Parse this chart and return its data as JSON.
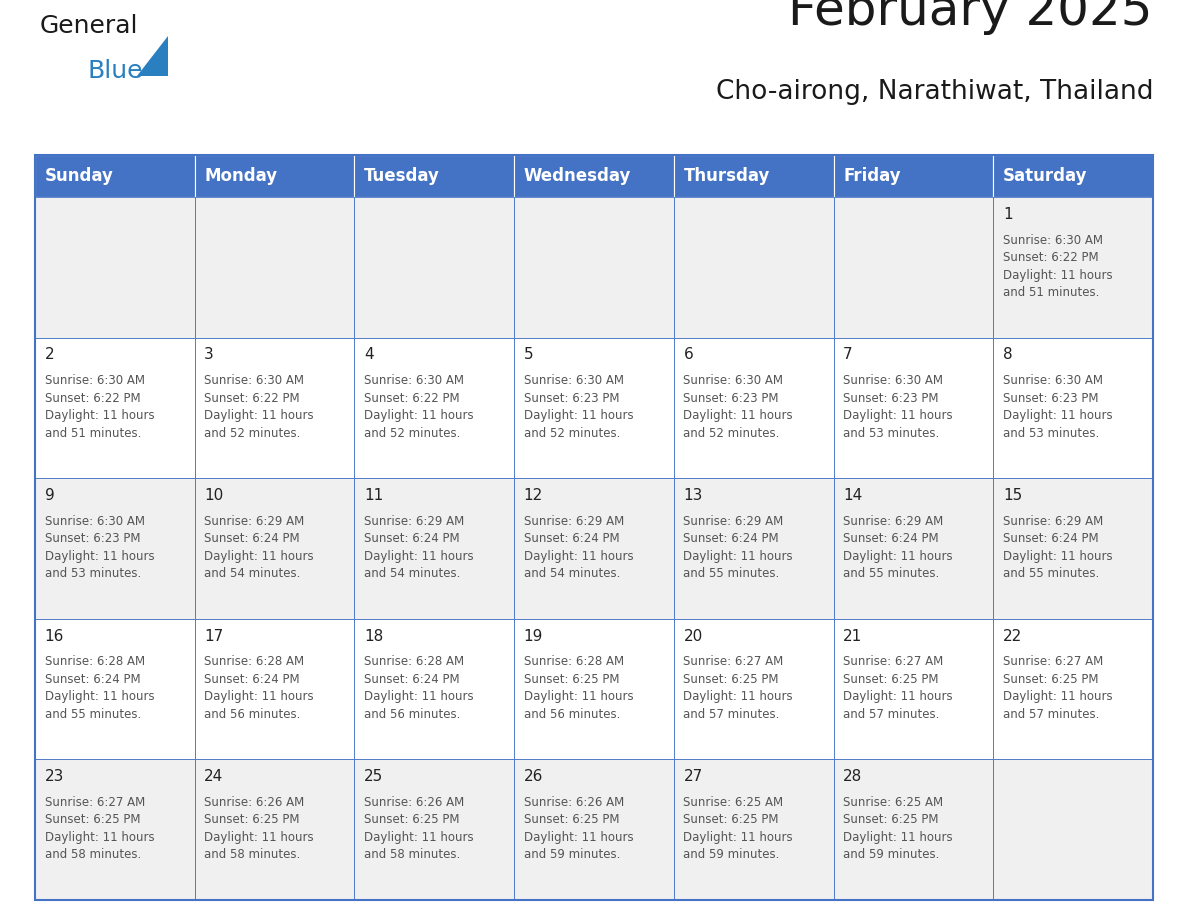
{
  "title": "February 2025",
  "subtitle": "Cho-airong, Narathiwat, Thailand",
  "header_color": "#4472C4",
  "header_text_color": "#FFFFFF",
  "days_of_week": [
    "Sunday",
    "Monday",
    "Tuesday",
    "Wednesday",
    "Thursday",
    "Friday",
    "Saturday"
  ],
  "background_color": "#FFFFFF",
  "cell_bg_even": "#F0F0F0",
  "cell_bg_odd": "#FFFFFF",
  "border_color": "#4472C4",
  "day_number_color": "#222222",
  "info_text_color": "#555555",
  "calendar_data": [
    [
      null,
      null,
      null,
      null,
      null,
      null,
      {
        "day": 1,
        "sunrise": "6:30 AM",
        "sunset": "6:22 PM",
        "daylight": "11 hours\nand 51 minutes."
      }
    ],
    [
      {
        "day": 2,
        "sunrise": "6:30 AM",
        "sunset": "6:22 PM",
        "daylight": "11 hours\nand 51 minutes."
      },
      {
        "day": 3,
        "sunrise": "6:30 AM",
        "sunset": "6:22 PM",
        "daylight": "11 hours\nand 52 minutes."
      },
      {
        "day": 4,
        "sunrise": "6:30 AM",
        "sunset": "6:22 PM",
        "daylight": "11 hours\nand 52 minutes."
      },
      {
        "day": 5,
        "sunrise": "6:30 AM",
        "sunset": "6:23 PM",
        "daylight": "11 hours\nand 52 minutes."
      },
      {
        "day": 6,
        "sunrise": "6:30 AM",
        "sunset": "6:23 PM",
        "daylight": "11 hours\nand 52 minutes."
      },
      {
        "day": 7,
        "sunrise": "6:30 AM",
        "sunset": "6:23 PM",
        "daylight": "11 hours\nand 53 minutes."
      },
      {
        "day": 8,
        "sunrise": "6:30 AM",
        "sunset": "6:23 PM",
        "daylight": "11 hours\nand 53 minutes."
      }
    ],
    [
      {
        "day": 9,
        "sunrise": "6:30 AM",
        "sunset": "6:23 PM",
        "daylight": "11 hours\nand 53 minutes."
      },
      {
        "day": 10,
        "sunrise": "6:29 AM",
        "sunset": "6:24 PM",
        "daylight": "11 hours\nand 54 minutes."
      },
      {
        "day": 11,
        "sunrise": "6:29 AM",
        "sunset": "6:24 PM",
        "daylight": "11 hours\nand 54 minutes."
      },
      {
        "day": 12,
        "sunrise": "6:29 AM",
        "sunset": "6:24 PM",
        "daylight": "11 hours\nand 54 minutes."
      },
      {
        "day": 13,
        "sunrise": "6:29 AM",
        "sunset": "6:24 PM",
        "daylight": "11 hours\nand 55 minutes."
      },
      {
        "day": 14,
        "sunrise": "6:29 AM",
        "sunset": "6:24 PM",
        "daylight": "11 hours\nand 55 minutes."
      },
      {
        "day": 15,
        "sunrise": "6:29 AM",
        "sunset": "6:24 PM",
        "daylight": "11 hours\nand 55 minutes."
      }
    ],
    [
      {
        "day": 16,
        "sunrise": "6:28 AM",
        "sunset": "6:24 PM",
        "daylight": "11 hours\nand 55 minutes."
      },
      {
        "day": 17,
        "sunrise": "6:28 AM",
        "sunset": "6:24 PM",
        "daylight": "11 hours\nand 56 minutes."
      },
      {
        "day": 18,
        "sunrise": "6:28 AM",
        "sunset": "6:24 PM",
        "daylight": "11 hours\nand 56 minutes."
      },
      {
        "day": 19,
        "sunrise": "6:28 AM",
        "sunset": "6:25 PM",
        "daylight": "11 hours\nand 56 minutes."
      },
      {
        "day": 20,
        "sunrise": "6:27 AM",
        "sunset": "6:25 PM",
        "daylight": "11 hours\nand 57 minutes."
      },
      {
        "day": 21,
        "sunrise": "6:27 AM",
        "sunset": "6:25 PM",
        "daylight": "11 hours\nand 57 minutes."
      },
      {
        "day": 22,
        "sunrise": "6:27 AM",
        "sunset": "6:25 PM",
        "daylight": "11 hours\nand 57 minutes."
      }
    ],
    [
      {
        "day": 23,
        "sunrise": "6:27 AM",
        "sunset": "6:25 PM",
        "daylight": "11 hours\nand 58 minutes."
      },
      {
        "day": 24,
        "sunrise": "6:26 AM",
        "sunset": "6:25 PM",
        "daylight": "11 hours\nand 58 minutes."
      },
      {
        "day": 25,
        "sunrise": "6:26 AM",
        "sunset": "6:25 PM",
        "daylight": "11 hours\nand 58 minutes."
      },
      {
        "day": 26,
        "sunrise": "6:26 AM",
        "sunset": "6:25 PM",
        "daylight": "11 hours\nand 59 minutes."
      },
      {
        "day": 27,
        "sunrise": "6:25 AM",
        "sunset": "6:25 PM",
        "daylight": "11 hours\nand 59 minutes."
      },
      {
        "day": 28,
        "sunrise": "6:25 AM",
        "sunset": "6:25 PM",
        "daylight": "11 hours\nand 59 minutes."
      },
      null
    ]
  ],
  "title_fontsize": 36,
  "subtitle_fontsize": 19,
  "header_fontsize": 12,
  "day_num_fontsize": 11,
  "info_fontsize": 8.5,
  "logo_general_color": "#1a1a1a",
  "logo_blue_color": "#2A7FC0",
  "logo_triangle_color": "#2A7FC0"
}
